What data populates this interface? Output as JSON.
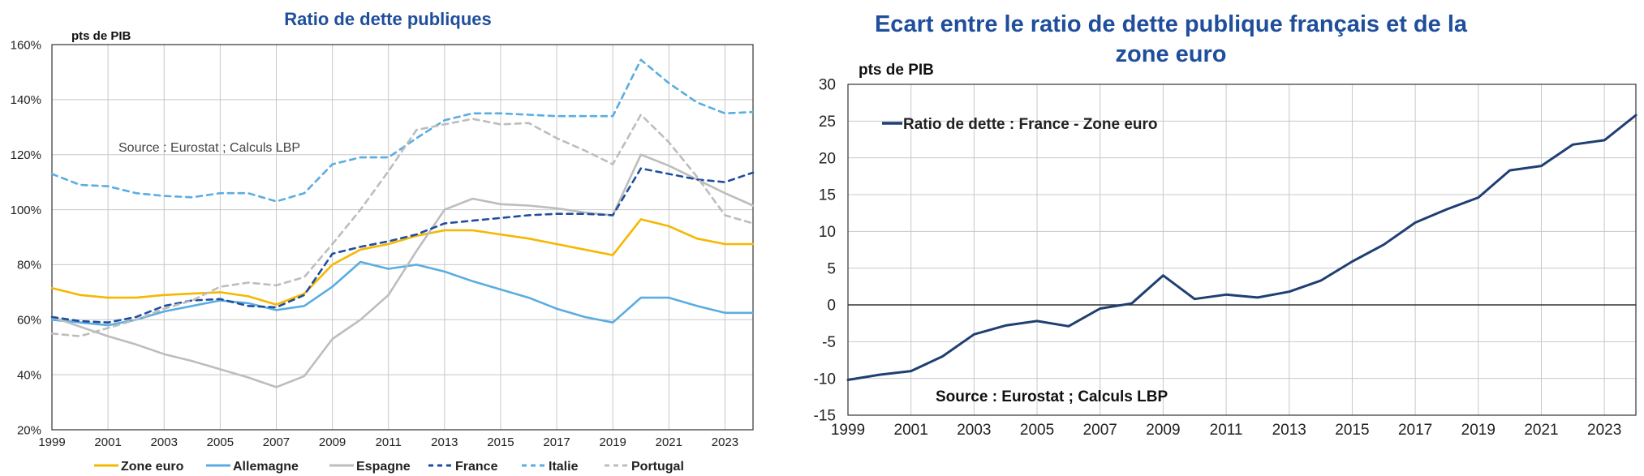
{
  "chart_data": [
    {
      "type": "line",
      "title": "Ratio de dette publiques",
      "ylabel": "pts de PIB",
      "source": "Source : Eurostat ; Calculs LBP",
      "x": [
        1999,
        2000,
        2001,
        2002,
        2003,
        2004,
        2005,
        2006,
        2007,
        2008,
        2009,
        2010,
        2011,
        2012,
        2013,
        2014,
        2015,
        2016,
        2017,
        2018,
        2019,
        2020,
        2021,
        2022,
        2023,
        2024
      ],
      "xticks": [
        "1999",
        "2001",
        "2003",
        "2005",
        "2007",
        "2009",
        "2011",
        "2013",
        "2015",
        "2017",
        "2019",
        "2021",
        "2023"
      ],
      "ylim": [
        20,
        160
      ],
      "yticks": [
        "20%",
        "40%",
        "60%",
        "80%",
        "100%",
        "120%",
        "140%",
        "160%"
      ],
      "series": [
        {
          "name": "Zone euro",
          "color": "#f5b800",
          "dashed": false,
          "values": [
            71.5,
            69,
            68,
            68,
            69,
            69.5,
            70,
            68.5,
            65.5,
            69.5,
            80,
            85.5,
            87.5,
            90.5,
            92.5,
            92.5,
            91,
            89.5,
            87.5,
            85.5,
            83.5,
            96.5,
            94,
            89.5,
            87.5,
            87.5
          ]
        },
        {
          "name": "Allemagne",
          "color": "#5aade0",
          "dashed": false,
          "values": [
            60,
            59,
            58,
            60,
            63,
            65,
            67,
            66,
            63.5,
            65,
            72,
            81,
            78.5,
            80,
            77.5,
            74,
            71,
            68,
            64,
            61,
            59,
            68,
            68,
            65,
            62.5,
            62.5
          ]
        },
        {
          "name": "Espagne",
          "color": "#bdbdbd",
          "dashed": false,
          "values": [
            61,
            57.5,
            54,
            51,
            47.5,
            45,
            42,
            39,
            35.5,
            39.5,
            53,
            60,
            69,
            85,
            100,
            104,
            102,
            101.5,
            100.5,
            99,
            98,
            120,
            116,
            111,
            106,
            101.5
          ]
        },
        {
          "name": "France",
          "color": "#1f4e9c",
          "dashed": true,
          "values": [
            61,
            59.5,
            59,
            61,
            65,
            67,
            67.5,
            65,
            64.5,
            69,
            84,
            86.5,
            88.5,
            91,
            95,
            96,
            97,
            98,
            98.5,
            98.5,
            98,
            115,
            113,
            111,
            110,
            113.5
          ]
        },
        {
          "name": "Italie",
          "color": "#5aade0",
          "dashed": true,
          "values": [
            113,
            109,
            108.5,
            106,
            105,
            104.5,
            106,
            106,
            103,
            106,
            116.5,
            119,
            119,
            126,
            132.5,
            135,
            135,
            134.5,
            134,
            134,
            134,
            154.5,
            146,
            139,
            135,
            135.5
          ]
        },
        {
          "name": "Portugal",
          "color": "#bdbdbd",
          "dashed": true,
          "values": [
            55,
            54,
            57,
            60,
            64,
            67,
            72,
            73.5,
            72.5,
            75.5,
            87.5,
            100,
            114,
            129,
            131,
            133,
            131,
            131.5,
            126,
            121.5,
            116.5,
            134.5,
            124.5,
            112,
            98,
            95
          ]
        }
      ]
    },
    {
      "type": "line",
      "title": "Ecart entre le ratio de dette publique français et de la zone euro",
      "title_lines": [
        "Ecart entre le ratio de dette publique français et de la",
        "zone euro"
      ],
      "ylabel": "pts de PIB",
      "source": "Source : Eurostat ; Calculs LBP",
      "x": [
        1999,
        2000,
        2001,
        2002,
        2003,
        2004,
        2005,
        2006,
        2007,
        2008,
        2009,
        2010,
        2011,
        2012,
        2013,
        2014,
        2015,
        2016,
        2017,
        2018,
        2019,
        2020,
        2021,
        2022,
        2023,
        2024
      ],
      "xticks": [
        "1999",
        "2001",
        "2003",
        "2005",
        "2007",
        "2009",
        "2011",
        "2013",
        "2015",
        "2017",
        "2019",
        "2021",
        "2023"
      ],
      "ylim": [
        -15,
        30
      ],
      "yticks": [
        "-15",
        "-10",
        "-5",
        "0",
        "5",
        "10",
        "15",
        "20",
        "25",
        "30"
      ],
      "series": [
        {
          "name": "Ratio de dette : France - Zone euro",
          "color": "#1f3f73",
          "dashed": false,
          "values": [
            -10.2,
            -9.5,
            -9,
            -7,
            -4,
            -2.8,
            -2.2,
            -2.9,
            -0.5,
            0.2,
            4,
            0.8,
            1.4,
            1,
            1.8,
            3.3,
            5.9,
            8.2,
            11.2,
            13,
            14.6,
            18.3,
            18.9,
            21.8,
            22.4,
            25.8
          ]
        }
      ]
    }
  ],
  "colors": {
    "title": "#1f4e9c",
    "grid": "#c8c8c8",
    "axis": "#333333"
  }
}
